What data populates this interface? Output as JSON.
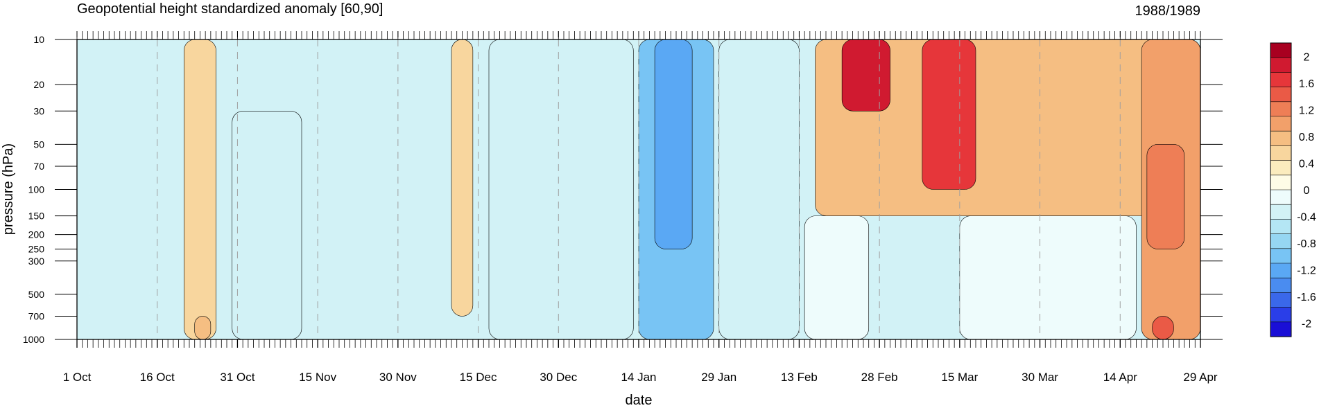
{
  "chart_data": {
    "type": "heatmap",
    "subtype": "filled-contour (time-pressure cross-section)",
    "title": "Geopotential height standardized anomaly [60,90]",
    "season_label": "1988/1989",
    "xlabel": "date",
    "ylabel": "pressure (hPa)",
    "x_ticks": [
      "1 Oct",
      "16 Oct",
      "31 Oct",
      "15 Nov",
      "30 Nov",
      "15 Dec",
      "30 Dec",
      "14 Jan",
      "29 Jan",
      "13 Feb",
      "28 Feb",
      "15 Mar",
      "30 Mar",
      "14 Apr",
      "29 Apr"
    ],
    "x_tick_day_index": [
      0,
      15,
      30,
      45,
      60,
      75,
      90,
      105,
      120,
      135,
      150,
      165,
      180,
      195,
      210
    ],
    "xlim_day_index": [
      0,
      210
    ],
    "y_ticks": [
      10,
      20,
      30,
      50,
      70,
      100,
      150,
      200,
      250,
      300,
      500,
      700,
      1000
    ],
    "ylim": [
      1000,
      10
    ],
    "y_scale": "log",
    "grid": "dashed vertical lines at x ticks",
    "colorbar": {
      "placement": "right",
      "levels": [
        -2.2,
        -2.0,
        -1.8,
        -1.6,
        -1.4,
        -1.2,
        -1.0,
        -0.8,
        -0.6,
        -0.4,
        -0.2,
        0,
        0.2,
        0.4,
        0.6,
        0.8,
        1.0,
        1.2,
        1.4,
        1.6,
        1.8,
        2.0,
        2.2
      ],
      "labels": [
        "2",
        "1.6",
        "1.2",
        "0.8",
        "0.4",
        "0",
        "-0.4",
        "-0.8",
        "-1.2",
        "-1.6",
        "-2"
      ],
      "label_values": [
        2,
        1.6,
        1.2,
        0.8,
        0.4,
        0,
        -0.4,
        -0.8,
        -1.2,
        -1.6,
        -2
      ],
      "colors": [
        "#1a0fd6",
        "#2a3ee8",
        "#3a68ea",
        "#4a8cf0",
        "#5aa8f4",
        "#78c4f4",
        "#96d6f2",
        "#b4e6f4",
        "#d2f2f6",
        "#eefcfc",
        "#fefce6",
        "#fbecbe",
        "#f8d69e",
        "#f5be82",
        "#f2a06a",
        "#ee7e56",
        "#ea5a46",
        "#e6363a",
        "#d01a30",
        "#a80020"
      ]
    },
    "anomaly_features": [
      {
        "label": "positive band",
        "day_from": 20,
        "day_to": 26,
        "p_from": 10,
        "p_to": 1000,
        "value": 0.3
      },
      {
        "label": "lower positive",
        "day_from": 22,
        "day_to": 25,
        "p_from": 700,
        "p_to": 1000,
        "value": 0.5
      },
      {
        "label": "negative column",
        "day_from": 29,
        "day_to": 42,
        "p_from": 30,
        "p_to": 1000,
        "value": -0.5
      },
      {
        "label": "positive column",
        "day_from": 70,
        "day_to": 74,
        "p_from": 10,
        "p_to": 700,
        "value": 0.25
      },
      {
        "label": "negative broad",
        "day_from": 77,
        "day_to": 104,
        "p_from": 10,
        "p_to": 1000,
        "value": -0.45
      },
      {
        "label": "strong negative",
        "day_from": 105,
        "day_to": 119,
        "p_from": 10,
        "p_to": 1000,
        "value": -1.1
      },
      {
        "label": "core negative",
        "day_from": 108,
        "day_to": 115,
        "p_from": 10,
        "p_to": 250,
        "value": -1.4
      },
      {
        "label": "negative",
        "day_from": 120,
        "day_to": 135,
        "p_from": 10,
        "p_to": 1000,
        "value": -0.5
      },
      {
        "label": "transition",
        "day_from": 136,
        "day_to": 148,
        "p_from": 150,
        "p_to": 1000,
        "value": -0.3
      },
      {
        "label": "strat warming",
        "day_from": 138,
        "day_to": 210,
        "p_from": 10,
        "p_to": 150,
        "value": 0.5
      },
      {
        "label": "warming peak",
        "day_from": 143,
        "day_to": 152,
        "p_from": 10,
        "p_to": 30,
        "value": 1.5
      },
      {
        "label": "mid-March peak",
        "day_from": 158,
        "day_to": 168,
        "p_from": 10,
        "p_to": 100,
        "value": 1.3
      },
      {
        "label": "negative lower",
        "day_from": 165,
        "day_to": 198,
        "p_from": 150,
        "p_to": 1000,
        "value": -0.4
      },
      {
        "label": "late positive",
        "day_from": 199,
        "day_to": 210,
        "p_from": 10,
        "p_to": 1000,
        "value": 0.6
      },
      {
        "label": "late peak",
        "day_from": 200,
        "day_to": 207,
        "p_from": 50,
        "p_to": 250,
        "value": 0.9
      },
      {
        "label": "surface peak",
        "day_from": 201,
        "day_to": 205,
        "p_from": 700,
        "p_to": 1000,
        "value": 1.1
      }
    ]
  }
}
